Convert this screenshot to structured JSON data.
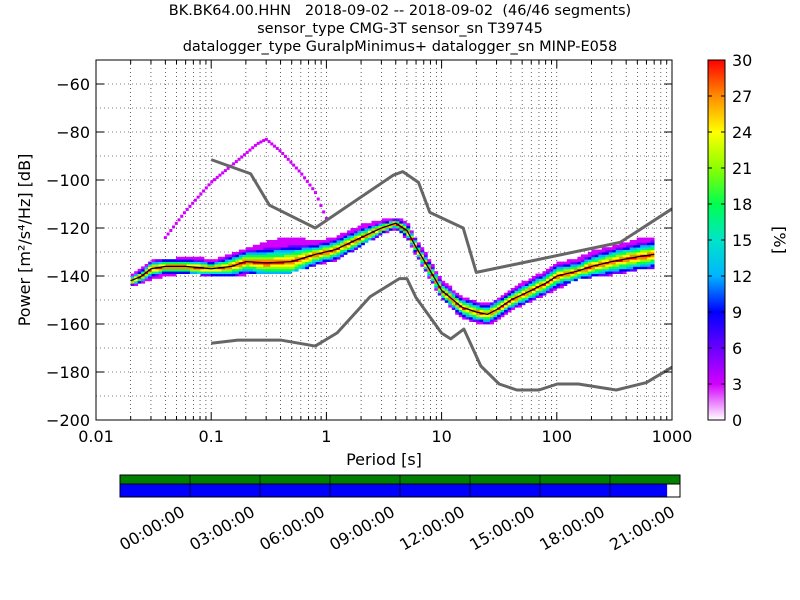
{
  "header": {
    "line1": "BK.BK64.00.HHN   2018-09-02 -- 2018-09-02  (46/46 segments)",
    "line2": "sensor_type CMG-3T sensor_sn T39745",
    "line3": "datalogger_type GuralpMinimus+ datalogger_sn MINP-E058"
  },
  "chart_data": [
    {
      "type": "heatmap",
      "title": "BK.BK64.00.HHN   2018-09-02 -- 2018-09-02  (46/46 segments)",
      "xlabel": "Period [s]",
      "ylabel": "Power [m²/s⁴/Hz] [dB]",
      "xscale": "log",
      "xlim": [
        0.01,
        1000
      ],
      "ylim": [
        -200,
        -50
      ],
      "xticks": [
        {
          "value": 0.01,
          "label": "0.01"
        },
        {
          "value": 0.1,
          "label": "0.1"
        },
        {
          "value": 1,
          "label": "1"
        },
        {
          "value": 10,
          "label": "10"
        },
        {
          "value": 100,
          "label": "100"
        },
        {
          "value": 1000,
          "label": "1000"
        }
      ],
      "yticks": [
        {
          "value": -60,
          "label": "−60"
        },
        {
          "value": -80,
          "label": "−80"
        },
        {
          "value": -100,
          "label": "−100"
        },
        {
          "value": -120,
          "label": "−120"
        },
        {
          "value": -140,
          "label": "−140"
        },
        {
          "value": -160,
          "label": "−160"
        },
        {
          "value": -180,
          "label": "−180"
        },
        {
          "value": -200,
          "label": "−200"
        }
      ],
      "grid": true,
      "colorbar": {
        "label": "[%]",
        "range": [
          0,
          30
        ],
        "ticks": [
          0,
          3,
          6,
          9,
          12,
          15,
          18,
          21,
          24,
          27,
          30
        ],
        "colormap": "pqlx"
      },
      "noise_models": {
        "nhnm": {
          "x": [
            0.1,
            0.22,
            0.32,
            0.8,
            3.8,
            4.6,
            6.3,
            7.9,
            15.4,
            20,
            354.8,
            1000
          ],
          "y": [
            -91.5,
            -97.4,
            -110.5,
            -120,
            -98,
            -96.5,
            -101,
            -113.5,
            -120,
            -138.5,
            -126,
            -112
          ]
        },
        "nlnm": {
          "x": [
            0.1,
            0.17,
            0.4,
            0.8,
            1.24,
            2.4,
            4.3,
            5,
            6,
            10,
            12,
            15.6,
            21.9,
            31.6,
            45,
            70,
            101,
            154,
            328,
            600,
            1000
          ],
          "y": [
            -168,
            -166.7,
            -166.7,
            -169.2,
            -163.7,
            -148.6,
            -141.1,
            -141.1,
            -149,
            -163.8,
            -166.2,
            -162.1,
            -177.5,
            -185,
            -187.5,
            -187.5,
            -185,
            -185,
            -187.5,
            -184.4,
            -178
          ]
        }
      },
      "mean_curve": {
        "x": [
          0.02,
          0.025,
          0.03,
          0.04,
          0.06,
          0.08,
          0.1,
          0.15,
          0.2,
          0.3,
          0.5,
          0.8,
          1.2,
          2,
          3,
          4,
          5,
          6,
          8,
          10,
          15,
          20,
          25,
          30,
          40,
          60,
          80,
          100,
          150,
          200,
          300,
          500,
          700
        ],
        "y": [
          -142,
          -140,
          -137,
          -136,
          -136,
          -136.5,
          -137,
          -136,
          -134,
          -134.5,
          -134,
          -131,
          -129,
          -124,
          -120,
          -118,
          -121,
          -128,
          -138,
          -146,
          -153,
          -155,
          -156,
          -154,
          -150,
          -146,
          -143,
          -140,
          -138,
          -136,
          -134,
          -132,
          -131
        ]
      },
      "upper_envelope": {
        "x": [
          0.04,
          0.06,
          0.1,
          0.15,
          0.2,
          0.25,
          0.3,
          0.4,
          0.6,
          0.8,
          1.0
        ],
        "y": [
          -124,
          -113,
          -101,
          -94,
          -89,
          -85,
          -83,
          -88,
          -97,
          -105,
          -116
        ]
      },
      "density_band": {
        "x": [
          0.02,
          0.03,
          0.05,
          0.08,
          0.1,
          0.15,
          0.2,
          0.3,
          0.5,
          0.8,
          1.2,
          2,
          3,
          4,
          5,
          6,
          8,
          10,
          15,
          20,
          25,
          30,
          40,
          60,
          80,
          100,
          150,
          200,
          300,
          500,
          700
        ],
        "y_low": [
          -144,
          -141,
          -139,
          -139,
          -140,
          -140,
          -139,
          -139,
          -138,
          -135,
          -133,
          -127,
          -122,
          -120,
          -124,
          -131,
          -141,
          -149,
          -157,
          -159,
          -160,
          -158,
          -154,
          -150,
          -147,
          -145,
          -141,
          -140,
          -139,
          -137,
          -136
        ],
        "y_high": [
          -140,
          -134,
          -133,
          -132,
          -134,
          -131,
          -129,
          -126,
          -124,
          -126,
          -124,
          -119,
          -117,
          -116,
          -118,
          -125,
          -134,
          -142,
          -149,
          -151,
          -152,
          -150,
          -146,
          -141,
          -138,
          -135,
          -133,
          -130,
          -128,
          -125,
          -124
        ]
      }
    },
    {
      "type": "timeline",
      "xticks": [
        "00:00:00",
        "03:00:00",
        "06:00:00",
        "09:00:00",
        "12:00:00",
        "15:00:00",
        "18:00:00",
        "21:00:00"
      ],
      "data_available_fraction": 1.0,
      "psd_coverage_fraction": 0.977,
      "colors": {
        "data": "#007f00",
        "psd": "#0000ff"
      }
    }
  ],
  "colors": {
    "noise_model": "#666666",
    "mean_curve": "#000000",
    "axes": "#000000"
  }
}
